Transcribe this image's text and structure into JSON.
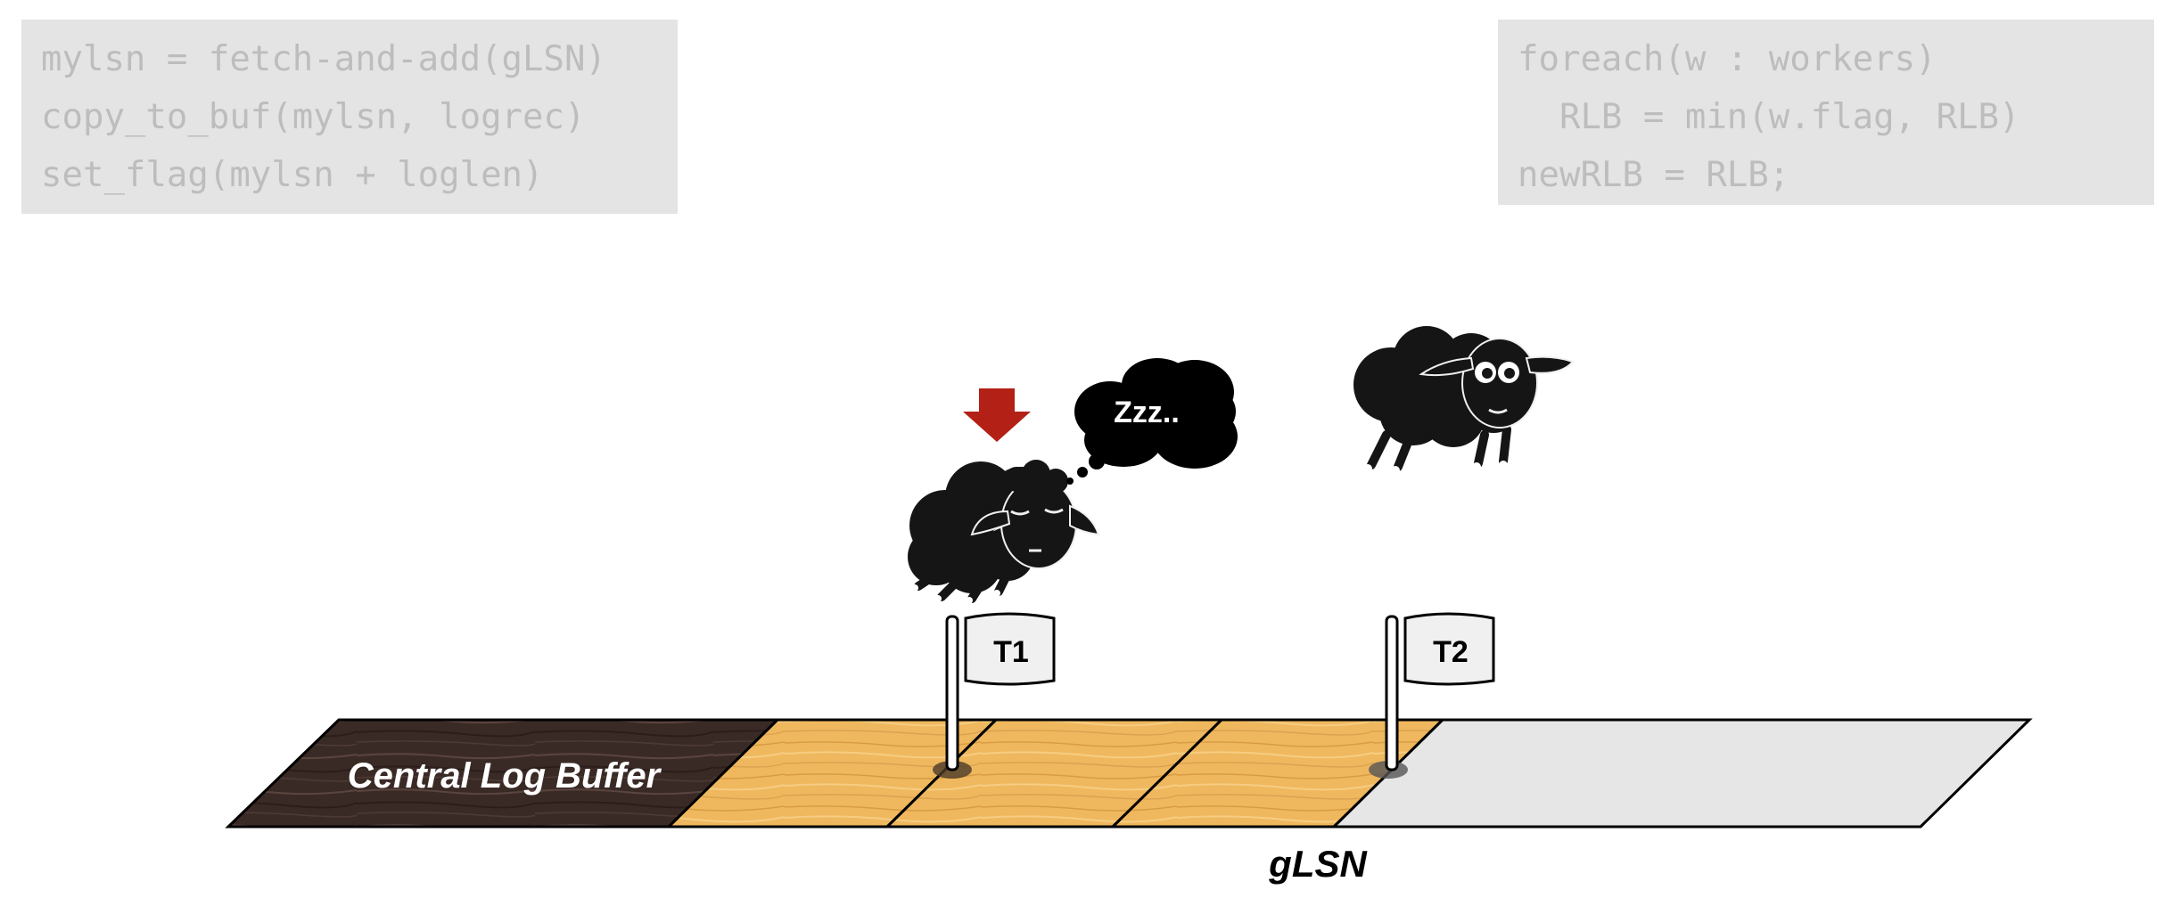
{
  "code_left": {
    "lines": [
      "mylsn = fetch-and-add(gLSN)",
      "copy_to_buf(mylsn, logrec)",
      "set_flag(mylsn + loglen)"
    ]
  },
  "code_right": {
    "lines": [
      "foreach(w : workers)",
      "  RLB = min(w.flag, RLB)",
      "newRLB = RLB;"
    ]
  },
  "buffer": {
    "label": "Central Log Buffer",
    "pointer_label": "gLSN"
  },
  "flags": [
    {
      "label": "T1"
    },
    {
      "label": "T2"
    }
  ],
  "thought_bubble": {
    "text": "Zzz.."
  },
  "colors": {
    "code_bg": "#e4e4e4",
    "code_text": "#bdbdbd",
    "dark_wood": "#3a2a26",
    "light_wood": "#efb85e",
    "empty_buffer": "#e6e6e6",
    "arrow": "#b22016",
    "sheep": "#151515"
  }
}
